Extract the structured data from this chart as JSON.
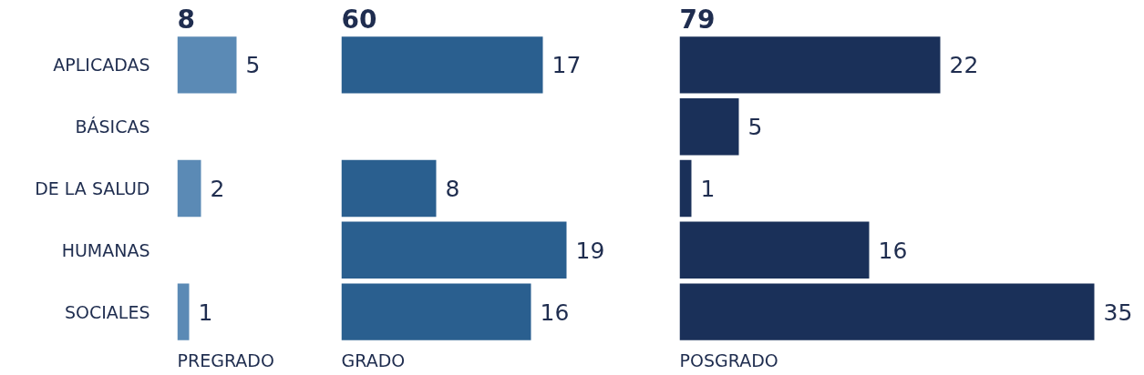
{
  "chart_data": [
    {
      "type": "bar",
      "orientation": "horizontal",
      "title": "8",
      "xlabel": "PREGRADO",
      "categories": [
        "APLICADAS",
        "BÁSICAS",
        "DE LA SALUD",
        "HUMANAS",
        "SOCIALES"
      ],
      "values": [
        5,
        null,
        2,
        null,
        1
      ],
      "color": "#5b8ab5",
      "data_labels": true,
      "tick_labels": "y"
    },
    {
      "type": "bar",
      "orientation": "horizontal",
      "title": "60",
      "xlabel": "GRADO",
      "categories": [
        null,
        null,
        null,
        null,
        null
      ],
      "values": [
        17,
        null,
        8,
        19,
        16
      ],
      "color": "#2a5f8f",
      "data_labels": true,
      "tick_labels": false
    },
    {
      "type": "bar",
      "orientation": "horizontal",
      "title": "79",
      "xlabel": "POSGRADO",
      "categories": [
        null,
        null,
        null,
        null,
        null
      ],
      "values": [
        22,
        5,
        1,
        16,
        35
      ],
      "color": "#1a3059",
      "data_labels": true,
      "tick_labels": false
    }
  ]
}
